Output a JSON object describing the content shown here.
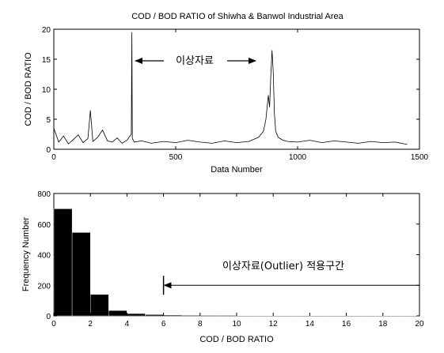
{
  "chart_data": [
    {
      "type": "line",
      "title": "COD / BOD RATIO of Shiwha & Banwol Industrial Area",
      "xlabel": "Data Number",
      "ylabel": "COD / BOD RATIO",
      "xlim": [
        0,
        1500
      ],
      "ylim": [
        0,
        20
      ],
      "xticks": [
        0,
        500,
        1000,
        1500
      ],
      "yticks": [
        0,
        5,
        10,
        15,
        20
      ],
      "grid": false,
      "annotations": [
        {
          "text": "이상자료",
          "arrows": "pointing left and right toward two outlier spikes"
        }
      ],
      "series": [
        {
          "x": [
            0,
            20,
            40,
            60,
            80,
            100,
            120,
            140,
            150,
            160,
            180,
            200,
            220,
            240,
            260,
            280,
            300,
            318,
            320,
            322,
            330,
            360,
            400,
            450,
            500,
            550,
            600,
            650,
            700,
            750,
            800,
            840,
            860,
            870,
            880,
            885,
            890,
            895,
            900,
            905,
            910,
            920,
            940,
            960,
            1000,
            1050,
            1100,
            1150,
            1200,
            1250,
            1300,
            1350,
            1400,
            1450
          ],
          "y": [
            3.5,
            1.2,
            2.2,
            0.9,
            1.6,
            2.4,
            1.1,
            1.8,
            6.5,
            1.3,
            2.0,
            3.2,
            1.4,
            1.2,
            1.9,
            1.0,
            1.5,
            2.5,
            19.5,
            1.8,
            1.2,
            1.4,
            1.0,
            1.3,
            1.1,
            1.5,
            1.2,
            1.0,
            1.4,
            1.1,
            1.3,
            2.0,
            3.0,
            5.0,
            9.0,
            7.0,
            12.0,
            16.5,
            13.0,
            6.0,
            3.0,
            2.0,
            1.5,
            1.3,
            1.2,
            1.5,
            1.1,
            1.4,
            1.2,
            1.0,
            1.3,
            1.1,
            1.2,
            0.8
          ]
        }
      ]
    },
    {
      "type": "bar",
      "xlabel": "COD / BOD RATIO",
      "ylabel": "Frequency Number",
      "xlim": [
        0,
        20
      ],
      "ylim": [
        0,
        800
      ],
      "xticks": [
        0,
        2,
        4,
        6,
        8,
        10,
        12,
        14,
        16,
        18,
        20
      ],
      "yticks": [
        0,
        200,
        400,
        600,
        800
      ],
      "grid": false,
      "bin_edges": [
        0,
        1,
        2,
        3,
        4,
        5,
        6,
        7,
        8,
        9,
        10,
        11,
        12,
        13,
        14,
        15,
        16,
        17,
        18,
        19,
        20
      ],
      "values": [
        700,
        545,
        140,
        35,
        15,
        8,
        5,
        4,
        3,
        3,
        2,
        2,
        1,
        2,
        1,
        1,
        2,
        1,
        1,
        1
      ],
      "annotations": [
        {
          "text": "이상자료(Outlier) 적용구간",
          "x_start": 6,
          "x_end": 20,
          "y": 200,
          "direction": "left"
        }
      ]
    }
  ]
}
